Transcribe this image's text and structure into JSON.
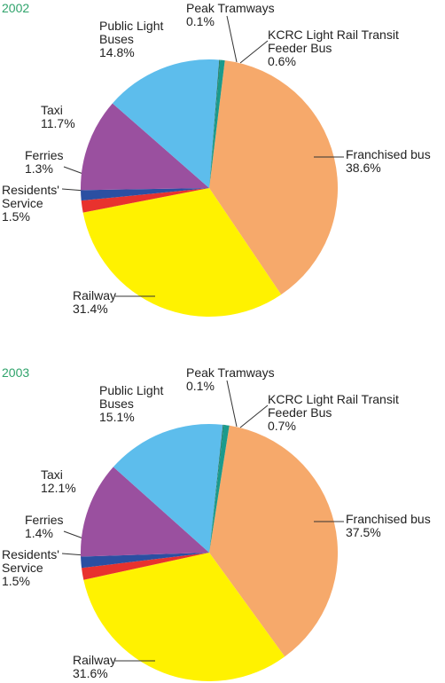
{
  "chart_data": [
    {
      "type": "pie",
      "title": "2002",
      "categories": [
        "Franchised bus",
        "Railway",
        "Residents' Service",
        "Ferries",
        "Taxi",
        "Public Light Buses",
        "Peak Tramways",
        "KCRC Light Rail Transit Feeder Bus"
      ],
      "values": [
        38.6,
        31.4,
        1.5,
        1.3,
        11.7,
        14.8,
        0.1,
        0.6
      ],
      "value_labels": [
        "38.6%",
        "31.4%",
        "1.5%",
        "1.3%",
        "11.7%",
        "14.8%",
        "0.1%",
        "0.6%"
      ],
      "colors": [
        "#f6a96b",
        "#fff200",
        "#e8322e",
        "#2b4fa2",
        "#9a509f",
        "#5dbdec",
        "#1d6b4c",
        "#1a9a8c"
      ]
    },
    {
      "type": "pie",
      "title": "2003",
      "categories": [
        "Franchised bus",
        "Railway",
        "Residents' Service",
        "Ferries",
        "Taxi",
        "Public Light Buses",
        "Peak Tramways",
        "KCRC Light Rail Transit Feeder Bus"
      ],
      "values": [
        37.5,
        31.6,
        1.5,
        1.4,
        12.1,
        15.1,
        0.1,
        0.7
      ],
      "value_labels": [
        "37.5%",
        "31.6%",
        "1.5%",
        "1.4%",
        "12.1%",
        "15.1%",
        "0.1%",
        "0.7%"
      ],
      "colors": [
        "#f6a96b",
        "#fff200",
        "#e8322e",
        "#2b4fa2",
        "#9a509f",
        "#5dbdec",
        "#1d6b4c",
        "#1a9a8c"
      ]
    }
  ]
}
